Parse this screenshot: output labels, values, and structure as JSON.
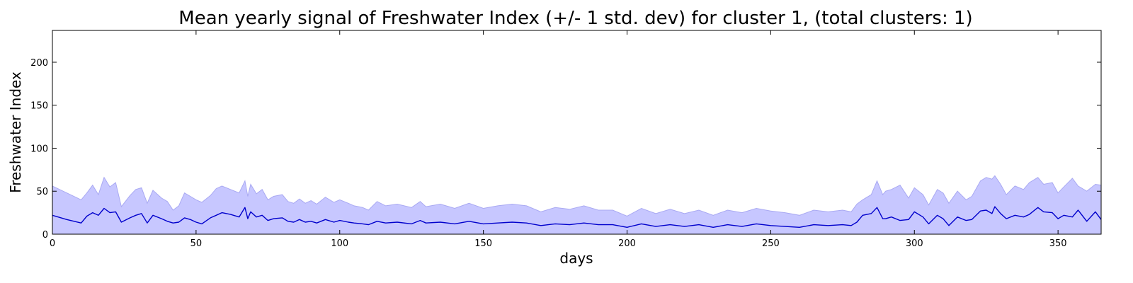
{
  "chart_data": {
    "type": "line",
    "title": "Mean yearly signal of Freshwater Index (+/- 1 std. dev) for cluster 1, (total clusters: 1)",
    "xlabel": "days",
    "ylabel": "Freshwater Index",
    "xlim": [
      0,
      365
    ],
    "ylim": [
      0,
      237
    ],
    "xticks": [
      0,
      50,
      100,
      150,
      200,
      250,
      300,
      350
    ],
    "yticks": [
      0,
      50,
      100,
      150,
      200
    ],
    "grid": false,
    "legend": "none",
    "colors": {
      "mean_line": "#0000cc",
      "band_fill": "#c7c7ff",
      "band_edge": "#a9a9f2"
    },
    "series": [
      {
        "x": [
          0,
          5,
          10,
          12,
          14,
          16,
          18,
          20,
          22,
          24,
          27,
          29,
          31,
          33,
          35,
          38,
          40,
          42,
          44,
          46,
          48,
          50,
          52,
          55,
          57,
          59,
          62,
          65,
          67,
          68,
          69,
          71,
          73,
          75,
          77,
          80,
          82,
          84,
          86,
          88,
          90,
          92,
          95,
          98,
          100,
          103,
          105,
          108,
          110,
          113,
          116,
          120,
          125,
          128,
          130,
          135,
          140,
          145,
          150,
          155,
          160,
          165,
          170,
          175,
          180,
          185,
          190,
          195,
          200,
          205,
          210,
          215,
          220,
          225,
          230,
          235,
          240,
          245,
          250,
          255,
          260,
          265,
          270,
          275,
          278,
          280,
          282,
          285,
          287,
          289,
          290,
          292,
          295,
          298,
          300,
          303,
          305,
          308,
          310,
          312,
          315,
          318,
          320,
          323,
          325,
          327,
          328,
          330,
          332,
          335,
          338,
          340,
          343,
          345,
          348,
          350,
          352,
          355,
          357,
          360,
          363,
          365
        ],
        "upper": [
          56,
          48,
          40,
          48,
          57,
          46,
          66,
          55,
          60,
          32,
          45,
          52,
          54,
          36,
          51,
          42,
          38,
          28,
          33,
          48,
          44,
          40,
          37,
          45,
          53,
          56,
          52,
          48,
          62,
          44,
          58,
          47,
          52,
          40,
          44,
          46,
          38,
          36,
          41,
          36,
          39,
          35,
          43,
          37,
          40,
          36,
          33,
          31,
          28,
          38,
          33,
          35,
          31,
          38,
          32,
          35,
          30,
          36,
          30,
          33,
          35,
          33,
          26,
          31,
          29,
          33,
          28,
          28,
          21,
          30,
          24,
          29,
          24,
          28,
          22,
          28,
          25,
          30,
          27,
          25,
          22,
          28,
          26,
          28,
          26,
          35,
          40,
          46,
          62,
          46,
          50,
          52,
          57,
          42,
          54,
          46,
          34,
          52,
          48,
          36,
          50,
          40,
          44,
          62,
          66,
          64,
          68,
          58,
          46,
          56,
          52,
          60,
          66,
          58,
          60,
          48,
          55,
          65,
          56,
          50,
          58,
          57
        ],
        "mean": [
          22,
          17,
          13,
          21,
          25,
          22,
          30,
          25,
          26,
          14,
          19,
          22,
          24,
          13,
          22,
          18,
          15,
          13,
          14,
          19,
          17,
          14,
          12,
          19,
          22,
          25,
          23,
          20,
          31,
          18,
          26,
          20,
          22,
          16,
          18,
          19,
          15,
          14,
          17,
          14,
          15,
          13,
          17,
          14,
          16,
          14,
          13,
          12,
          11,
          15,
          13,
          14,
          12,
          16,
          13,
          14,
          12,
          15,
          12,
          13,
          14,
          13,
          10,
          12,
          11,
          13,
          11,
          11,
          8,
          12,
          9,
          11,
          9,
          11,
          8,
          11,
          9,
          12,
          10,
          9,
          8,
          11,
          10,
          11,
          10,
          14,
          22,
          24,
          31,
          18,
          18,
          20,
          16,
          17,
          26,
          20,
          12,
          22,
          18,
          10,
          20,
          16,
          17,
          27,
          28,
          24,
          32,
          24,
          18,
          22,
          20,
          23,
          31,
          26,
          25,
          18,
          22,
          20,
          28,
          15,
          26,
          17
        ],
        "lower": [
          0,
          0,
          0,
          0,
          0,
          0,
          0,
          0,
          0,
          0,
          0,
          0,
          0,
          0,
          0,
          0,
          0,
          0,
          0,
          0,
          0,
          0,
          0,
          0,
          0,
          0,
          0,
          0,
          0,
          0,
          0,
          0,
          0,
          0,
          0,
          0,
          0,
          0,
          0,
          0,
          0,
          0,
          0,
          0,
          0,
          0,
          0,
          0,
          0,
          0,
          0,
          0,
          0,
          0,
          0,
          0,
          0,
          0,
          0,
          0,
          0,
          0,
          0,
          0,
          0,
          0,
          0,
          0,
          0,
          0,
          0,
          0,
          0,
          0,
          0,
          0,
          0,
          0,
          0,
          0,
          0,
          0,
          0,
          0,
          0,
          0,
          0,
          0,
          0,
          0,
          0,
          0,
          0,
          0,
          0,
          0,
          0,
          0,
          0,
          0,
          0,
          0,
          0,
          0,
          0,
          0,
          0,
          0,
          0,
          0,
          0,
          0,
          0,
          0,
          0,
          0,
          0,
          0,
          0,
          0,
          0,
          0
        ]
      }
    ]
  }
}
